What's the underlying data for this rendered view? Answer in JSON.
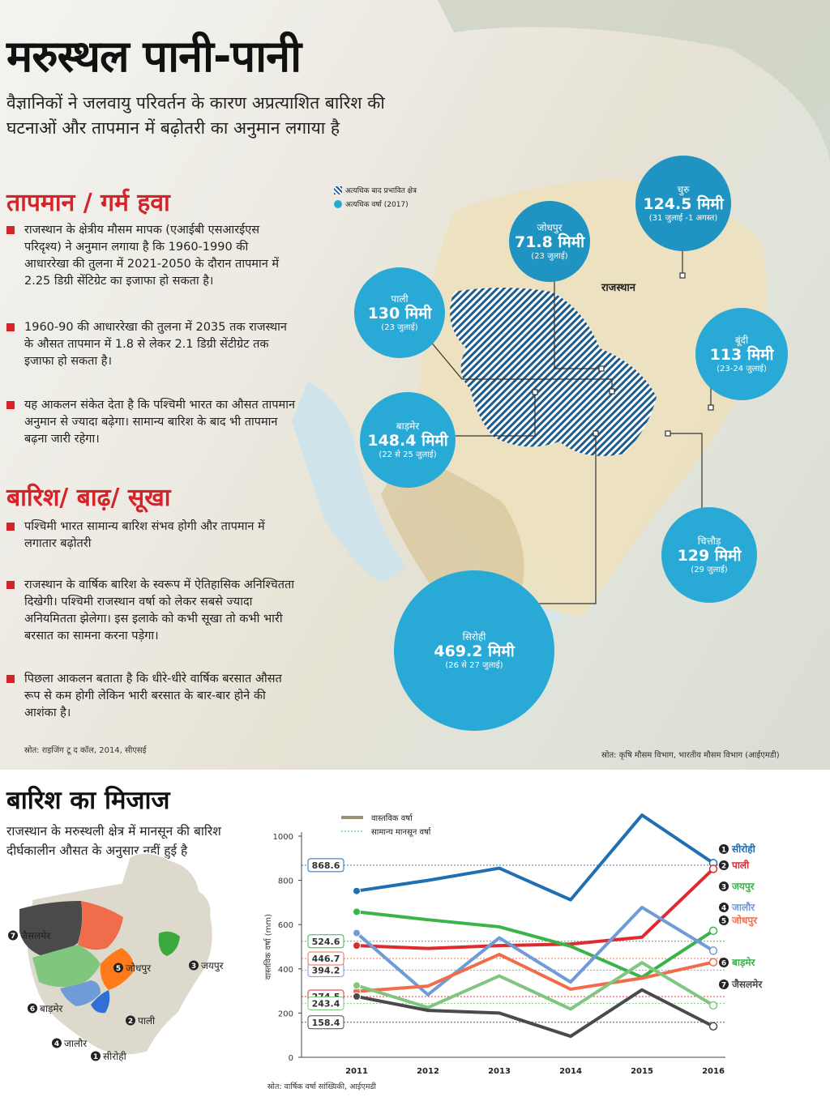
{
  "header": {
    "title": "मरुस्थल पानी-पानी",
    "subtitle": "वैज्ञानिकों ने जलवायु परिवर्तन के कारण अप्रत्याशित बारिश की घटनाओं और तापमान में बढ़ोतरी का अनुमान लगाया है"
  },
  "temperature": {
    "heading": "तापमान / गर्म हवा",
    "bullets": [
      "राजस्थान के क्षेत्रीय मौसम मापक (एआईबी एसआरईएस परिदृश्य) ने अनुमान लगाया है कि 1960-1990 की आधाररेखा की तुलना में 2021-2050 के दौरान तापमान में 2.25 डिग्री सेंटिग्रेट का इजाफा हो सकता है।",
      "1960-90 की आधाररेखा की तुलना में 2035 तक राजस्थान के औसत तापमान में 1.8 से लेकर 2.1 डिग्री सेंटीग्रेट तक इजाफा हो सकता है।",
      "यह आकलन संकेत देता है कि पश्चिमी भारत का औसत तापमान अनुमान से ज्यादा बढ़ेगा। सामान्य बारिश के बाद भी तापमान बढ़ना जारी रहेगा।"
    ]
  },
  "rain": {
    "heading": "बारिश/ बाढ़/ सूखा",
    "bullets": [
      "पश्चिमी भारत  सामान्य बारिश संभव होगी और तापमान में लगातार बढ़ोतरी",
      "राजस्थान के वार्षिक बारिश के स्वरूप में ऐतिहासिक अनिश्चितता दिखेगी। पश्चिमी राजस्थान वर्षा को लेकर सबसे ज्यादा अनियमितता झेलेगा। इस इलाके को कभी सूखा तो कभी भारी बरसात का सामना करना पड़ेगा।",
      "पिछला आकलन बताता है कि धीरे-धीरे वार्षिक बरसात औसत रूप से कम होगी लेकिन भारी बरसात के बार-बार होने की आशंका है।"
    ]
  },
  "source_left": "स्रोत: राइजिंग टू द कॉल, 2014, सीएसई",
  "source_map": "स्रोत: कृषि मौसम विभाग, भारतीय मौसम विभाग (आईएमडी)",
  "map": {
    "legend_hatched": "अत्यधिक बाद प्रभावित क्षेत्र",
    "legend_rain": "अत्यधिक वर्षा (2017)",
    "region_label": "राजस्थान",
    "bubbles": [
      {
        "name": "चुरु",
        "value": "124.5 मिमी",
        "date": "(31 जुलाई -1 अगस्त)"
      },
      {
        "name": "जोधपुर",
        "value": "71.8 मिमी",
        "date": "(23 जुलाई)"
      },
      {
        "name": "पाली",
        "value": "130 मिमी",
        "date": "(23 जुलाई)"
      },
      {
        "name": "बूंदी",
        "value": "113 मिमी",
        "date": "(23-24 जुलाई)"
      },
      {
        "name": "बाड़मेर",
        "value": "148.4 मिमी",
        "date": "(22 से 25 जुलाई)"
      },
      {
        "name": "चित्तौड़",
        "value": "129 मिमी",
        "date": "(29 जुलाई)"
      },
      {
        "name": "सिरोही",
        "value": "469.2 मिमी",
        "date": "(26 से 27 जुलाई)"
      }
    ]
  },
  "bottom": {
    "title": "बारिश का मिजाज",
    "subtitle": "राजस्थान  के मरुस्थली क्षेत्र में मानसून की बारिश दीर्घकालीन औसत के अनुसार नहीं हुई है",
    "source": "स्रोत: वार्षिक वर्षा सांख्यिकी, आईएमडी",
    "district_map_labels": [
      {
        "num": "7",
        "name": "जैसलमेर"
      },
      {
        "num": "5",
        "name": "जोधपुर"
      },
      {
        "num": "3",
        "name": "जयपुर"
      },
      {
        "num": "6",
        "name": "बाड़मेर"
      },
      {
        "num": "2",
        "name": "पाली"
      },
      {
        "num": "4",
        "name": "जालौर"
      },
      {
        "num": "1",
        "name": "सीरोही"
      }
    ]
  },
  "colors": {
    "accent_red": "#d6232a",
    "bubble_blue": "#29a9d6",
    "hatch_blue": "#1e5c8c"
  },
  "chart_data": {
    "type": "line",
    "title": "",
    "xlabel": "",
    "ylabel": "वास्तविक वर्षा (mm)",
    "x": [
      "2011",
      "2012",
      "2013",
      "2014",
      "2015",
      "2016"
    ],
    "ylim": [
      0,
      1000
    ],
    "yticks": [
      "0",
      "200",
      "400",
      "600",
      "800",
      "1000"
    ],
    "grid": false,
    "legend": {
      "position": "top",
      "actual_label": "वास्तविक वर्षा",
      "normal_label": "सामान्य मानसून वर्षा"
    },
    "series": [
      {
        "name": "सीरोही",
        "num": "1",
        "color": "#1f6fb2",
        "normal": 868.6,
        "normal_label": "868.6",
        "values": [
          752,
          800,
          855,
          712,
          1095,
          878
        ]
      },
      {
        "name": "पाली",
        "num": "2",
        "color": "#e02a2f",
        "normal": 274.5,
        "normal_label": "274.5",
        "values": [
          505,
          492,
          505,
          512,
          543,
          852
        ]
      },
      {
        "name": "जयपुर",
        "num": "3",
        "color": "#39b34a",
        "normal": 524.6,
        "normal_label": "524.6",
        "values": [
          658,
          622,
          590,
          502,
          362,
          572
        ]
      },
      {
        "name": "जालौर",
        "num": "4",
        "color": "#6f9bd8",
        "normal": 394.2,
        "normal_label": "394.2",
        "values": [
          562,
          283,
          540,
          340,
          678,
          482
        ]
      },
      {
        "name": "जोधपुर",
        "num": "5",
        "color": "#ef6d4a",
        "normal": 446.7,
        "normal_label": "446.7",
        "values": [
          298,
          322,
          465,
          308,
          358,
          430
        ]
      },
      {
        "name": "बाड़मेर",
        "num": "6",
        "color": "#80c67f",
        "normal": 243.4,
        "normal_label": "243.4",
        "values": [
          325,
          225,
          368,
          218,
          428,
          235
        ]
      },
      {
        "name": "जैसलमेर",
        "num": "7",
        "color": "#4a4a4a",
        "normal": 158.4,
        "normal_label": "158.4",
        "values": [
          275,
          212,
          200,
          95,
          305,
          140
        ]
      }
    ]
  }
}
